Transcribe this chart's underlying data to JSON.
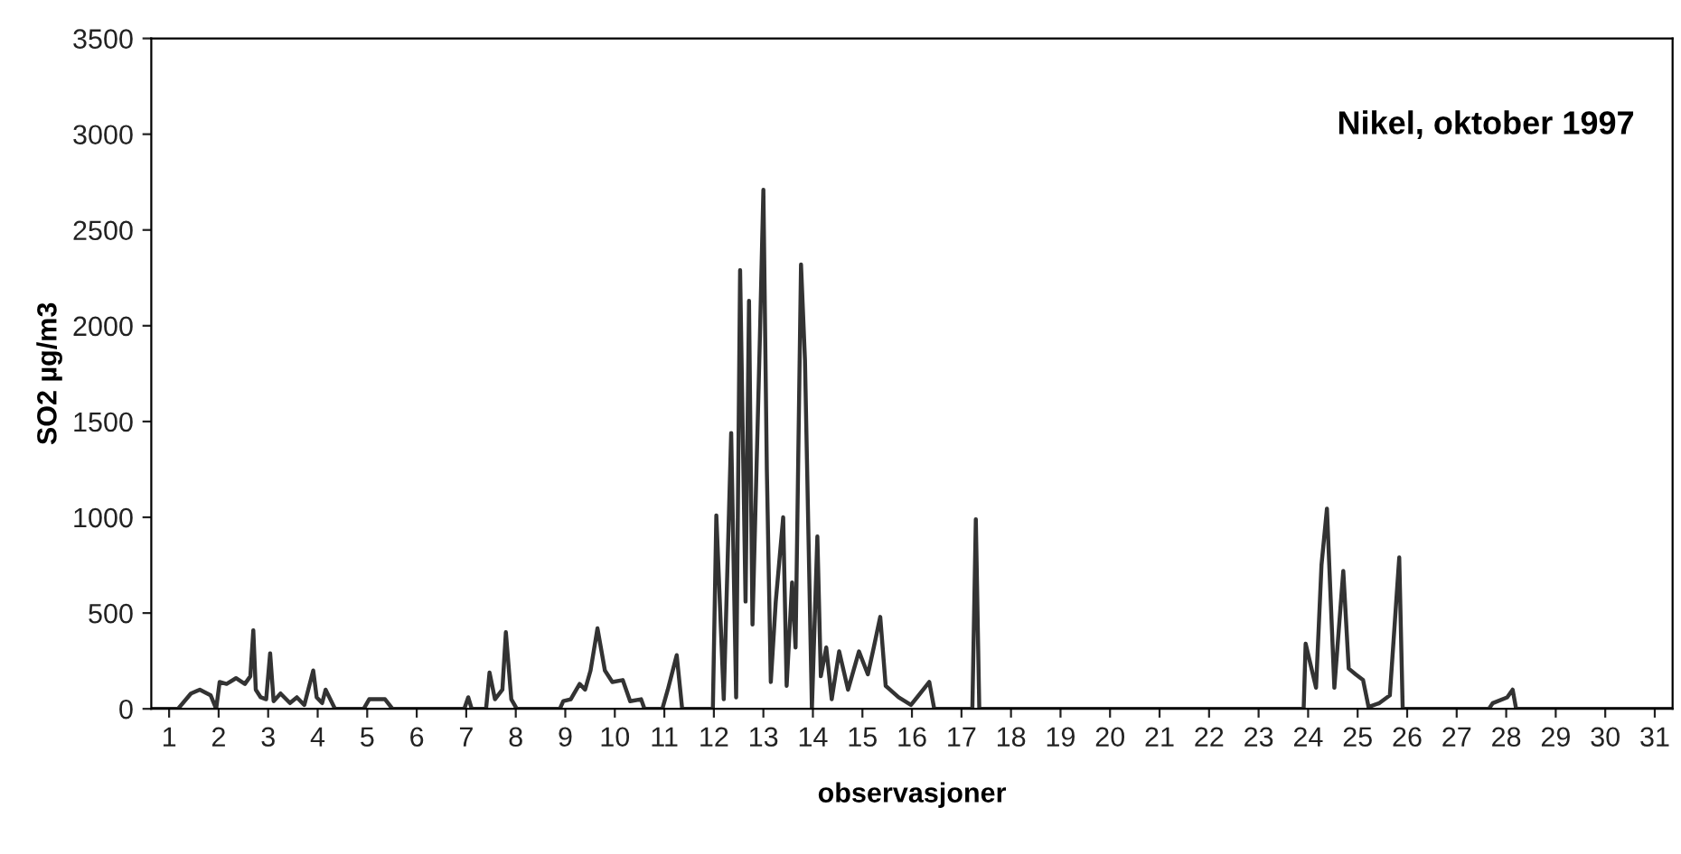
{
  "chart_data": {
    "type": "line",
    "title": "Nikel, oktober 1997",
    "xlabel": "observasjoner",
    "ylabel": "SO2 µg/m3",
    "x": [
      0.64,
      1.18,
      1.44,
      1.62,
      1.84,
      1.95,
      2.02,
      2.16,
      2.35,
      2.53,
      2.64,
      2.7,
      2.75,
      2.85,
      2.96,
      3.04,
      3.11,
      3.25,
      3.44,
      3.58,
      3.73,
      3.91,
      3.98,
      4.09,
      4.16,
      4.35,
      4.93,
      5.04,
      5.36,
      5.51,
      6.96,
      7.04,
      7.11,
      7.4,
      7.47,
      7.58,
      7.73,
      7.8,
      7.91,
      8.02,
      8.89,
      8.96,
      9.11,
      9.29,
      9.4,
      9.51,
      9.65,
      9.8,
      9.95,
      10.16,
      10.31,
      10.53,
      10.6,
      10.96,
      11.07,
      11.22,
      11.25,
      11.36,
      11.98,
      12.05,
      12.2,
      12.35,
      12.45,
      12.53,
      12.64,
      12.71,
      12.78,
      12.93,
      13.0,
      13.07,
      13.15,
      13.25,
      13.4,
      13.47,
      13.58,
      13.65,
      13.76,
      13.84,
      13.98,
      14.09,
      14.16,
      14.27,
      14.38,
      14.53,
      14.71,
      14.93,
      15.11,
      15.22,
      15.36,
      15.47,
      15.73,
      15.98,
      16.35,
      16.45,
      17.22,
      17.29,
      17.36,
      23.91,
      23.95,
      24.16,
      24.27,
      24.38,
      24.53,
      24.71,
      24.82,
      24.96,
      25.11,
      25.22,
      25.44,
      25.65,
      25.84,
      25.91,
      27.65,
      27.73,
      28.02,
      28.13,
      28.2,
      31.36
    ],
    "series": [
      {
        "color": "#333333",
        "values": [
          0,
          0,
          80,
          100,
          70,
          0,
          140,
          130,
          160,
          130,
          170,
          410,
          100,
          60,
          50,
          290,
          40,
          80,
          30,
          60,
          20,
          200,
          60,
          30,
          100,
          0,
          0,
          50,
          50,
          0,
          0,
          60,
          0,
          0,
          190,
          50,
          100,
          400,
          50,
          0,
          0,
          40,
          50,
          130,
          100,
          200,
          420,
          200,
          140,
          150,
          40,
          50,
          0,
          0,
          100,
          250,
          280,
          0,
          0,
          1010,
          50,
          1440,
          60,
          2290,
          560,
          2130,
          440,
          1940,
          2710,
          1250,
          140,
          560,
          1000,
          120,
          660,
          320,
          2320,
          1820,
          0,
          900,
          170,
          320,
          50,
          300,
          100,
          300,
          180,
          310,
          480,
          120,
          60,
          20,
          140,
          0,
          0,
          990,
          0,
          0,
          340,
          110,
          750,
          1045,
          110,
          720,
          210,
          180,
          150,
          10,
          30,
          70,
          790,
          0,
          0,
          30,
          60,
          100,
          0,
          0
        ]
      }
    ],
    "xlim": [
      0.64,
      31.36
    ],
    "xticks": [
      1,
      2,
      3,
      4,
      5,
      6,
      7,
      8,
      9,
      10,
      11,
      12,
      13,
      14,
      15,
      16,
      17,
      18,
      19,
      20,
      21,
      22,
      23,
      24,
      25,
      26,
      27,
      28,
      29,
      30,
      31
    ],
    "ylim": [
      0,
      3500
    ],
    "yticks": [
      0,
      500,
      1000,
      1500,
      2000,
      2500,
      3000,
      3500
    ],
    "grid": false,
    "legend": false,
    "marker": "none",
    "line_style": "solid"
  }
}
